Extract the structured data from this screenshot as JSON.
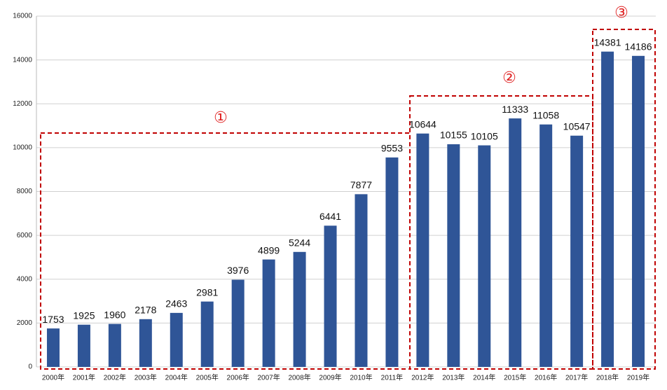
{
  "chart_data": {
    "type": "bar",
    "categories": [
      "2000年",
      "2001年",
      "2002年",
      "2003年",
      "2004年",
      "2005年",
      "2006年",
      "2007年",
      "2008年",
      "2009年",
      "2010年",
      "2011年",
      "2012年",
      "2013年",
      "2014年",
      "2015年",
      "2016年",
      "2017年",
      "2018年",
      "2019年"
    ],
    "values": [
      1753,
      1925,
      1960,
      2178,
      2463,
      2981,
      3976,
      4899,
      5244,
      6441,
      7877,
      9553,
      10644,
      10155,
      10105,
      11333,
      11058,
      10547,
      14381,
      14186
    ],
    "color": "#2f5597",
    "ylim": [
      0,
      16000
    ],
    "yticks": [
      0,
      2000,
      4000,
      6000,
      8000,
      10000,
      12000,
      14000,
      16000
    ],
    "grid": true,
    "annotations": [
      "①",
      "②",
      "③"
    ]
  }
}
